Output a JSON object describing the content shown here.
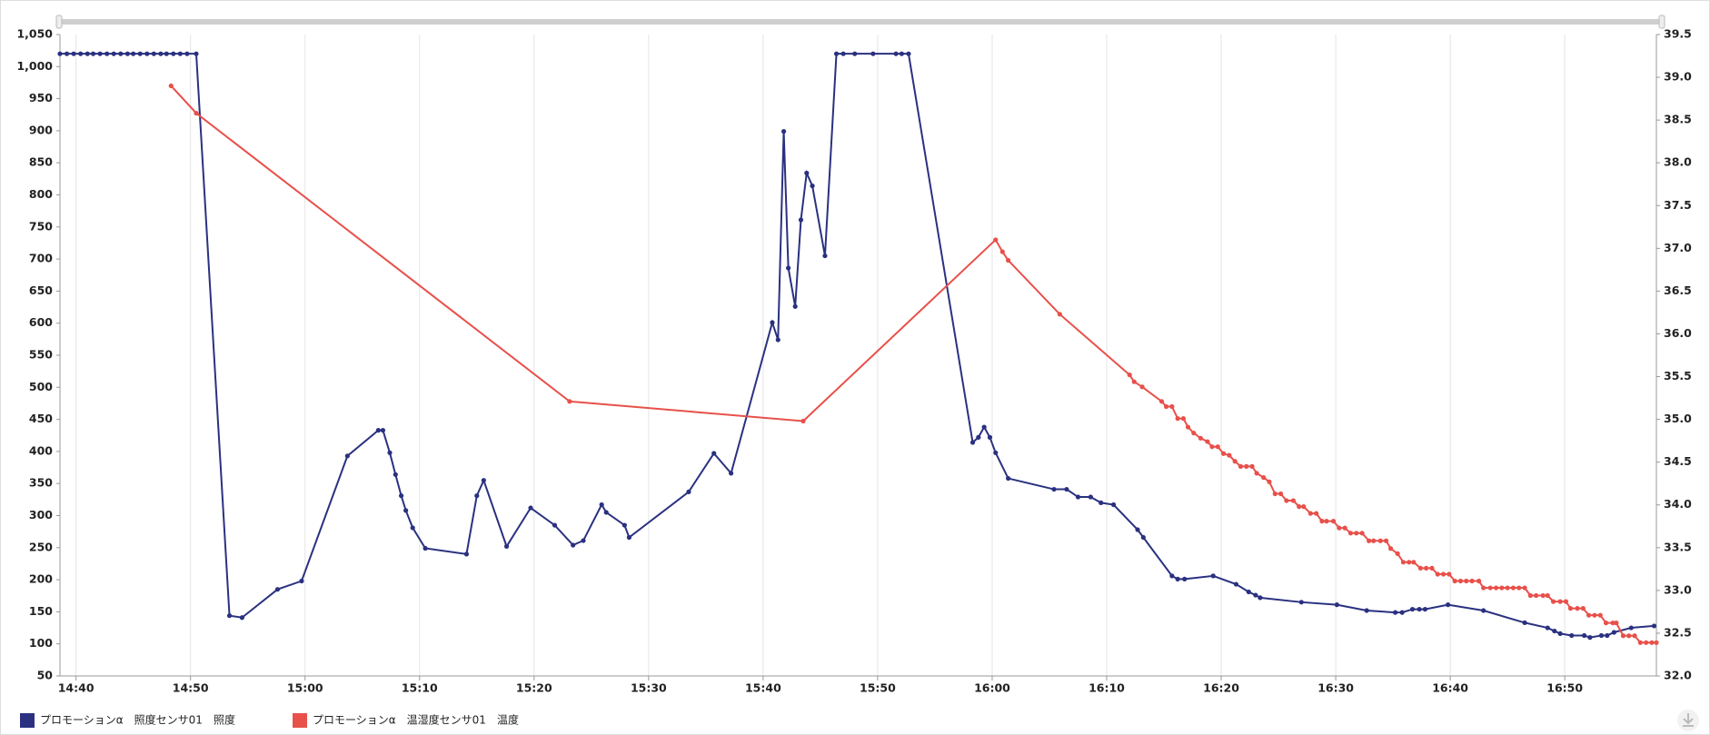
{
  "chart_data": {
    "type": "line",
    "x": null,
    "xlim": [
      878.6,
      1018.0
    ],
    "xticks": [
      {
        "value": 880,
        "label": "14:40"
      },
      {
        "value": 890,
        "label": "14:50"
      },
      {
        "value": 900,
        "label": "15:00"
      },
      {
        "value": 910,
        "label": "15:10"
      },
      {
        "value": 920,
        "label": "15:20"
      },
      {
        "value": 930,
        "label": "15:30"
      },
      {
        "value": 940,
        "label": "15:40"
      },
      {
        "value": 950,
        "label": "15:50"
      },
      {
        "value": 960,
        "label": "16:00"
      },
      {
        "value": 970,
        "label": "16:10"
      },
      {
        "value": 980,
        "label": "16:20"
      },
      {
        "value": 990,
        "label": "16:30"
      },
      {
        "value": 1000,
        "label": "16:40"
      },
      {
        "value": 1010,
        "label": "16:50"
      }
    ],
    "ylim": [
      50,
      1050
    ],
    "yticks": [
      50,
      100,
      150,
      200,
      250,
      300,
      350,
      400,
      450,
      500,
      550,
      600,
      650,
      700,
      750,
      800,
      850,
      900,
      950,
      {
        "value": 1000,
        "label": "1,000"
      },
      {
        "value": 1050,
        "label": "1,050"
      }
    ],
    "y2lim": [
      32.0,
      39.5
    ],
    "y2ticks": [
      {
        "value": 32,
        "label": "32.0"
      },
      32.5,
      {
        "value": 33,
        "label": "33.0"
      },
      33.5,
      {
        "value": 34,
        "label": "34.0"
      },
      34.5,
      {
        "value": 35,
        "label": "35.0"
      },
      35.5,
      {
        "value": 36,
        "label": "36.0"
      },
      36.5,
      {
        "value": 37,
        "label": "37.0"
      },
      37.5,
      {
        "value": 38,
        "label": "38.0"
      },
      38.5,
      {
        "value": 39,
        "label": "39.0"
      },
      39.5
    ],
    "grid": true,
    "legend": "bottom-left",
    "series": [
      {
        "name": "プロモーションα　照度センサ01　照度",
        "color": "#2a3180",
        "axis": "y",
        "x": [
          878.6,
          879.2,
          879.8,
          880.4,
          881.0,
          881.5,
          882.1,
          882.7,
          883.3,
          883.9,
          884.5,
          885.0,
          885.6,
          886.2,
          886.8,
          887.4,
          887.9,
          888.5,
          889.1,
          889.7,
          890.5,
          893.4,
          894.5,
          897.6,
          899.7,
          903.7,
          906.4,
          906.8,
          907.4,
          907.9,
          908.4,
          908.8,
          909.4,
          910.5,
          914.1,
          915.0,
          915.6,
          917.6,
          919.7,
          921.8,
          923.4,
          924.3,
          925.9,
          926.3,
          927.9,
          928.3,
          933.5,
          935.7,
          937.2,
          940.8,
          941.3,
          941.8,
          942.2,
          942.8,
          943.3,
          943.8,
          944.3,
          945.4,
          946.4,
          947.0,
          948.0,
          949.6,
          951.6,
          952.1,
          952.7,
          958.3,
          958.8,
          959.3,
          959.8,
          960.3,
          961.4,
          965.4,
          966.5,
          967.5,
          968.6,
          969.5,
          970.6,
          972.7,
          973.2,
          975.7,
          976.2,
          976.8,
          979.3,
          981.3,
          982.4,
          983.0,
          983.4,
          987.0,
          990.1,
          992.7,
          995.2,
          995.8,
          996.7,
          997.3,
          997.8,
          999.8,
          1002.9,
          1006.5,
          1008.5,
          1009.1,
          1009.6,
          1010.6,
          1011.7,
          1012.2,
          1013.2,
          1013.7,
          1014.3,
          1015.8,
          1017.8
        ],
        "values": [
          1020,
          1020,
          1020,
          1020,
          1020,
          1020,
          1020,
          1020,
          1020,
          1020,
          1020,
          1020,
          1020,
          1020,
          1020,
          1020,
          1020,
          1020,
          1020,
          1020,
          1020,
          144,
          141,
          185,
          198,
          393,
          433,
          433,
          398,
          364,
          331,
          308,
          281,
          249,
          240,
          331,
          355,
          252,
          312,
          285,
          254,
          261,
          317,
          305,
          285,
          266,
          337,
          397,
          366,
          601,
          574,
          899,
          686,
          626,
          761,
          834,
          814,
          705,
          1020,
          1020,
          1020,
          1020,
          1020,
          1020,
          1020,
          414,
          422,
          438,
          422,
          398,
          358,
          341,
          341,
          329,
          329,
          320,
          317,
          278,
          266,
          206,
          201,
          201,
          206,
          193,
          181,
          176,
          172,
          165,
          161,
          152,
          149,
          149,
          154,
          154,
          154,
          161,
          152,
          133,
          125,
          120,
          116,
          113,
          113,
          110,
          113,
          113,
          118,
          125,
          128
        ]
      },
      {
        "name": "プロモーションα　温湿度センサ01　温度",
        "color": "#e8504a",
        "axis": "y2",
        "x": [
          888.3,
          890.5,
          923.1,
          943.5,
          960.3,
          960.9,
          961.4,
          965.9,
          972.0,
          972.4,
          973.1,
          974.8,
          975.2,
          975.7,
          976.2,
          976.7,
          977.1,
          977.6,
          978.2,
          978.8,
          979.2,
          979.7,
          980.2,
          980.7,
          981.2,
          981.7,
          982.2,
          982.7,
          983.1,
          983.7,
          984.2,
          984.7,
          985.2,
          985.7,
          986.3,
          986.8,
          987.2,
          987.8,
          988.3,
          988.8,
          989.2,
          989.8,
          990.3,
          990.8,
          991.3,
          991.8,
          992.3,
          992.9,
          993.3,
          993.9,
          994.4,
          994.8,
          995.4,
          995.9,
          996.4,
          996.8,
          997.4,
          997.9,
          998.4,
          998.9,
          999.4,
          999.9,
          1000.4,
          1000.9,
          1001.4,
          1001.9,
          1002.5,
          1002.9,
          1003.5,
          1004.0,
          1004.5,
          1005.0,
          1005.5,
          1006.0,
          1006.5,
          1007.0,
          1007.5,
          1008.1,
          1008.5,
          1009.0,
          1009.6,
          1010.1,
          1010.5,
          1011.1,
          1011.6,
          1012.1,
          1012.6,
          1013.1,
          1013.6,
          1014.2,
          1014.5,
          1015.1,
          1015.6,
          1016.1,
          1016.6,
          1017.1,
          1017.6,
          1018.0
        ],
        "values": [
          38.9,
          38.58,
          35.21,
          34.98,
          37.1,
          36.96,
          36.86,
          36.23,
          35.52,
          35.44,
          35.38,
          35.21,
          35.15,
          35.15,
          35.01,
          35.01,
          34.91,
          34.84,
          34.78,
          34.74,
          34.68,
          34.68,
          34.6,
          34.58,
          34.51,
          34.45,
          34.45,
          34.45,
          34.37,
          34.32,
          34.27,
          34.13,
          34.13,
          34.05,
          34.05,
          33.98,
          33.98,
          33.9,
          33.9,
          33.81,
          33.81,
          33.81,
          33.73,
          33.73,
          33.67,
          33.67,
          33.67,
          33.58,
          33.58,
          33.58,
          33.58,
          33.49,
          33.43,
          33.33,
          33.33,
          33.33,
          33.26,
          33.26,
          33.26,
          33.19,
          33.19,
          33.19,
          33.11,
          33.11,
          33.11,
          33.11,
          33.11,
          33.03,
          33.03,
          33.03,
          33.03,
          33.03,
          33.03,
          33.03,
          33.03,
          32.94,
          32.94,
          32.94,
          32.94,
          32.87,
          32.87,
          32.87,
          32.79,
          32.79,
          32.79,
          32.71,
          32.71,
          32.71,
          32.62,
          32.62,
          32.62,
          32.47,
          32.47,
          32.47,
          32.39,
          32.39,
          32.39,
          32.39
        ]
      }
    ]
  }
}
